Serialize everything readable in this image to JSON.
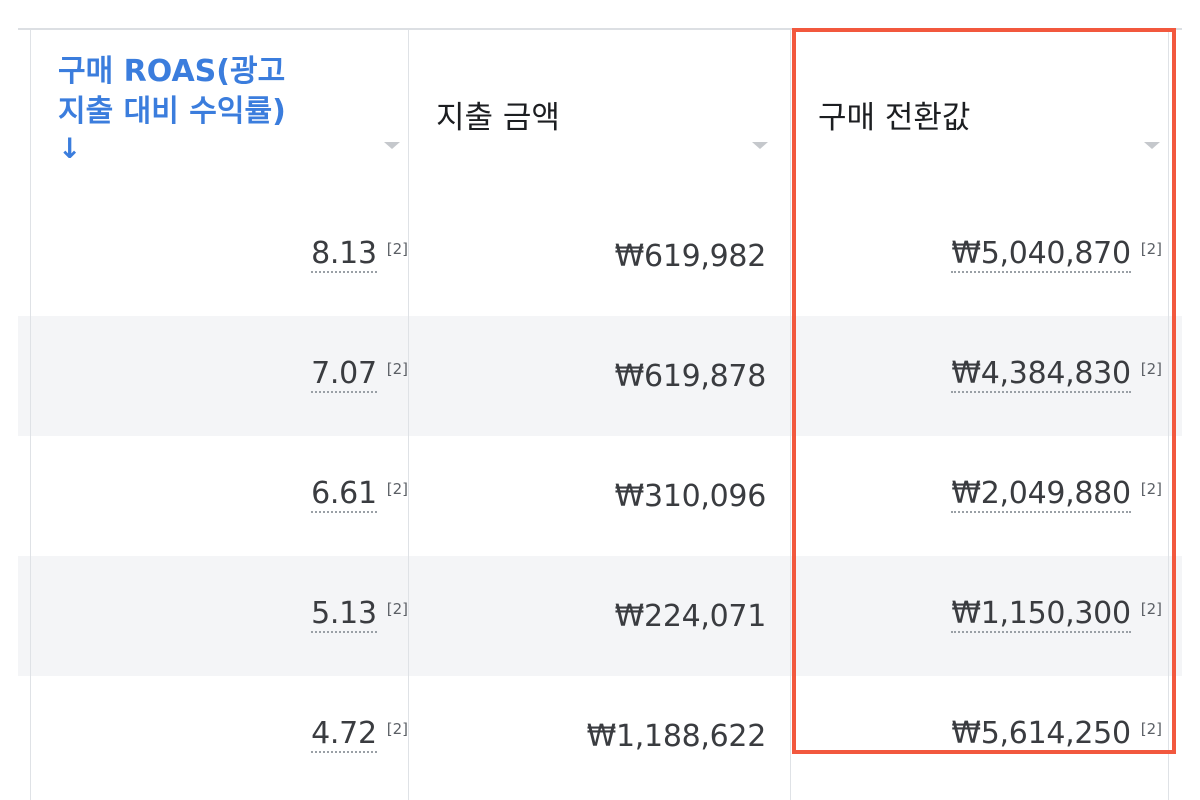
{
  "columns": [
    {
      "title_line1": "구매 ROAS(광고",
      "title_line2": "지출 대비 수익률)",
      "sort_indicator": "↓"
    },
    {
      "title": "지출 금액"
    },
    {
      "title": "구매 전환값"
    }
  ],
  "rows": [
    {
      "roas": "8.13",
      "roas_note": "[2]",
      "spend": "₩619,982",
      "conversion": "₩5,040,870",
      "conversion_note": "[2]"
    },
    {
      "roas": "7.07",
      "roas_note": "[2]",
      "spend": "₩619,878",
      "conversion": "₩4,384,830",
      "conversion_note": "[2]"
    },
    {
      "roas": "6.61",
      "roas_note": "[2]",
      "spend": "₩310,096",
      "conversion": "₩2,049,880",
      "conversion_note": "[2]"
    },
    {
      "roas": "5.13",
      "roas_note": "[2]",
      "spend": "₩224,071",
      "conversion": "₩1,150,300",
      "conversion_note": "[2]"
    },
    {
      "roas": "4.72",
      "roas_note": "[2]",
      "spend": "₩1,188,622",
      "conversion": "₩5,614,250",
      "conversion_note": "[2]"
    }
  ],
  "colors": {
    "accent_header": "#3b7ddd",
    "highlight_border": "#f2583e",
    "stripe": "#f4f5f7"
  }
}
